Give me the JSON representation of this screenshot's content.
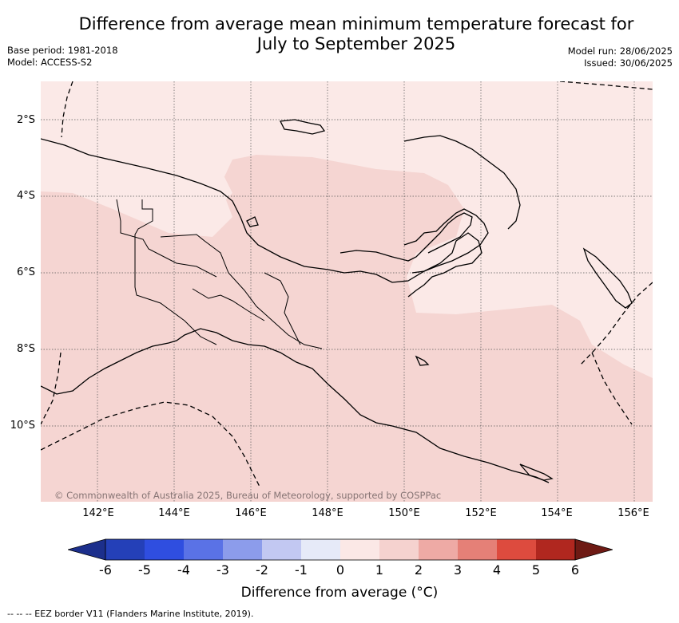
{
  "title_line1": "Difference from average mean minimum temperature forecast for",
  "title_line2": "July to September 2025",
  "base_period": "Base period: 1981-2018",
  "model": "Model: ACCESS-S2",
  "model_run": "Model run: 28/06/2025",
  "issued": "Issued: 30/06/2025",
  "credit": "© Commonwealth of Australia 2025, Bureau of Meteorology, supported by COSPPac",
  "lat_labels": [
    "2°S",
    "4°S",
    "6°S",
    "8°S",
    "10°S"
  ],
  "lon_labels": [
    "142°E",
    "144°E",
    "146°E",
    "148°E",
    "150°E",
    "152°E",
    "154°E",
    "156°E"
  ],
  "colorbar": {
    "ticks": [
      "-6",
      "-5",
      "-4",
      "-3",
      "-2",
      "-1",
      "0",
      "1",
      "2",
      "3",
      "4",
      "5",
      "6"
    ],
    "colors": [
      "#1c2f8c",
      "#2440b8",
      "#2f4ee0",
      "#5a72e6",
      "#8c9ceb",
      "#c2c8f2",
      "#e6eaf8",
      "#fbe8e6",
      "#f5d2cf",
      "#eeaaa5",
      "#e58077",
      "#dd4b3e",
      "#b0271f",
      "#6e1a14"
    ],
    "label": "Difference from average (°C)"
  },
  "footnote": "-- -- -- EEZ border V11 (Flanders Marine Institute, 2019).",
  "colors": {
    "light_pink": "#fbe9e7",
    "mid_pink": "#f5d5d2"
  }
}
